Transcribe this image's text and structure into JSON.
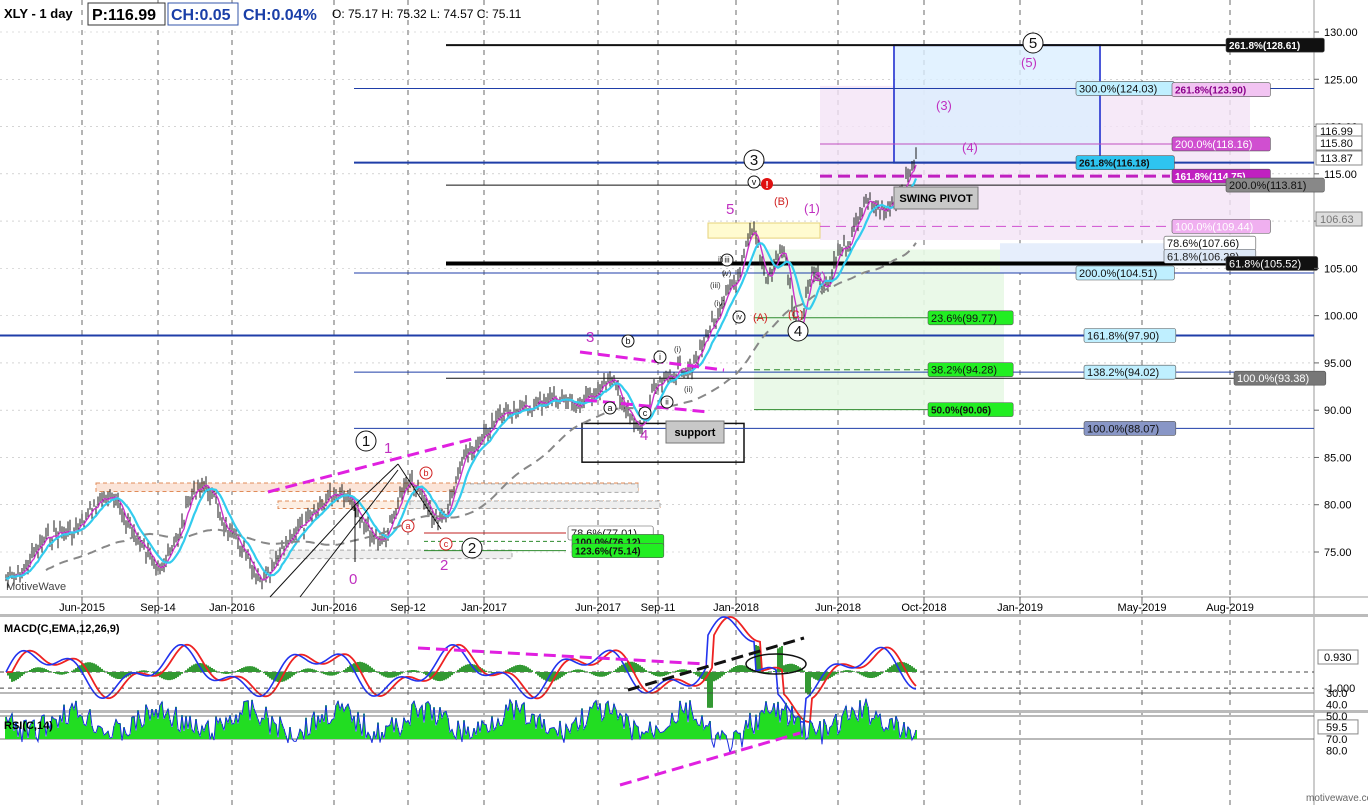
{
  "header": {
    "symbol": "XLY - 1 day",
    "price": "P:116.99",
    "change": "CH:0.05",
    "change_pct": "CH:0.04%",
    "ohlc": "O: 75.17  H: 75.32  L: 74.57  C: 75.11"
  },
  "brand": "MotiveWave",
  "footer_brand": "motivewave.com",
  "colors": {
    "ma_fast": "#cc33cc",
    "ma_mid": "#33ccee",
    "ma_slow": "#888888",
    "macd": "#2233ee",
    "signal": "#ee2222",
    "hist": "#339933",
    "rsi": "#1a2ee0",
    "fib_line": "#1f3ea8",
    "accent_magenta": "#e020e0"
  },
  "chart_data": [
    {
      "type": "line",
      "title": "XLY - 1 day",
      "x_ticks": [
        "Jun-2015",
        "Sep-14",
        "Jan-2016",
        "Jun-2016",
        "Sep-12",
        "Jan-2017",
        "Jun-2017",
        "Sep-11",
        "Jan-2018",
        "Jun-2018",
        "Oct-2018",
        "Jan-2019",
        "May-2019",
        "Aug-2019"
      ],
      "y_ticks": [
        75.0,
        80.0,
        85.0,
        90.0,
        95.0,
        100.0,
        105.0,
        110.0,
        115.0,
        120.0,
        125.0,
        130.0
      ],
      "ylim": [
        70.5,
        133.0
      ],
      "x": [
        "2015-03",
        "2015-06",
        "2015-07",
        "2015-09",
        "2015-11",
        "2016-01",
        "2016-02",
        "2016-04",
        "2016-06",
        "2016-07",
        "2016-09",
        "2016-11",
        "2016-12",
        "2017-03",
        "2017-05",
        "2017-06",
        "2017-08",
        "2017-09",
        "2017-10",
        "2017-11",
        "2017-12",
        "2018-01",
        "2018-01b",
        "2018-02",
        "2018-03",
        "2018-03b",
        "2018-04",
        "2018-05",
        "2018-06",
        "2018-06b",
        "2018-07",
        "2018-08",
        "2018-09"
      ],
      "series": [
        {
          "values": [
            72.5,
            77.5,
            80.5,
            73.5,
            82.0,
            76.5,
            71.5,
            78.0,
            81.5,
            76.0,
            82.5,
            78.0,
            86.0,
            90.5,
            91.0,
            92.5,
            88.5,
            92.0,
            95.0,
            99.0,
            103.5,
            109.0,
            104.0,
            106.5,
            99.0,
            104.5,
            102.5,
            107.0,
            112.5,
            110.5,
            112.5,
            115.5,
            117.0
          ]
        }
      ],
      "fib_levels": [
        {
          "label": "261.8%(128.61)",
          "value": 128.61
        },
        {
          "label": "300.0%(124.03)",
          "value": 124.03
        },
        {
          "label": "261.8%(123.90)",
          "value": 123.9
        },
        {
          "label": "200.0%(118.16)",
          "value": 118.16
        },
        {
          "label": "261.8%(116.18)",
          "value": 116.18
        },
        {
          "label": "161.8%(114.75)",
          "value": 114.75
        },
        {
          "label": "200.0%(113.81)",
          "value": 113.81
        },
        {
          "label": "100.0%(109.44)",
          "value": 109.44
        },
        {
          "label": "78.6%(107.66)",
          "value": 107.66
        },
        {
          "label": "61.8%(106.28)",
          "value": 106.28
        },
        {
          "label": "61.8%(105.52)",
          "value": 105.52
        },
        {
          "label": "200.0%(104.51)",
          "value": 104.51
        },
        {
          "label": "23.6%(99.77)",
          "value": 99.77
        },
        {
          "label": "161.8%(97.90)",
          "value": 97.9
        },
        {
          "label": "38.2%(94.28)",
          "value": 94.28
        },
        {
          "label": "138.2%(94.02)",
          "value": 94.02
        },
        {
          "label": "100.0%(93.38)",
          "value": 93.38
        },
        {
          "label": "50.0%(90.06)",
          "value": 90.06
        },
        {
          "label": "100.0%(88.07)",
          "value": 88.07
        },
        {
          "label": "78.6%(77.01)",
          "value": 77.01
        },
        {
          "label": "100.0%(76.12)",
          "value": 76.12
        },
        {
          "label": "123.6%(75.14)",
          "value": 75.14
        }
      ],
      "price_tags": [
        "116.99",
        "115.80",
        "113.87",
        "106.63"
      ],
      "annotations": [
        "SWING PIVOT",
        "support",
        "1",
        "2",
        "3",
        "4",
        "5",
        "0",
        "(1)",
        "(2)",
        "(3)",
        "(4)",
        "(5)",
        "(A)",
        "(B)",
        "(C)",
        "a",
        "b",
        "c",
        "i",
        "ii",
        "iii",
        "iv",
        "v"
      ]
    },
    {
      "type": "line",
      "title": "MACD(C,EMA,12,26,9)",
      "y_ticks": [
        "0.930",
        "-1.000"
      ],
      "ylim": [
        -2.4,
        3.0
      ]
    },
    {
      "type": "line",
      "title": "RSI(C,14)",
      "y_ticks": [
        "80.0",
        "70.0",
        "59.5",
        "50.0",
        "40.0",
        "30.0"
      ],
      "ylim": [
        23,
        85
      ]
    }
  ]
}
